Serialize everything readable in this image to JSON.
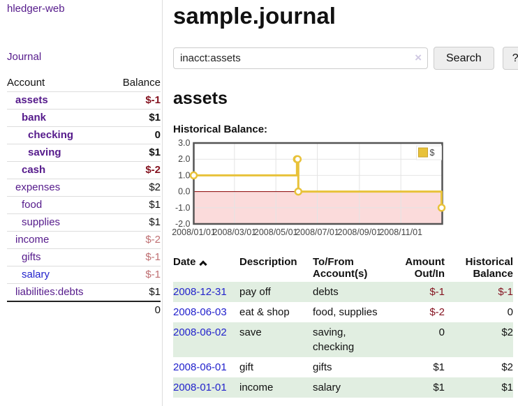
{
  "app": {
    "title": "hledger-web"
  },
  "sidebar": {
    "nav": {
      "journal_label": "Journal"
    },
    "table": {
      "account_header": "Account",
      "balance_header": "Balance",
      "accounts": [
        {
          "name": "assets",
          "balance": "$-1",
          "depth": 1
        },
        {
          "name": "bank",
          "balance": "$1",
          "depth": 2
        },
        {
          "name": "checking",
          "balance": "0",
          "depth": 3
        },
        {
          "name": "saving",
          "balance": "$1",
          "depth": 3
        },
        {
          "name": "cash",
          "balance": "$-2",
          "depth": 2
        },
        {
          "name": "expenses",
          "balance": "$2",
          "depth": 1
        },
        {
          "name": "food",
          "balance": "$1",
          "depth": 2
        },
        {
          "name": "supplies",
          "balance": "$1",
          "depth": 2
        },
        {
          "name": "income",
          "balance": "$-2",
          "depth": 1
        },
        {
          "name": "gifts",
          "balance": "$-1",
          "depth": 2
        },
        {
          "name": "salary",
          "balance": "$-1",
          "depth": 2
        },
        {
          "name": "liabilities:debts",
          "balance": "$1",
          "depth": 1
        }
      ],
      "total": "0"
    }
  },
  "main": {
    "title": "sample.journal",
    "search": {
      "value": "inacct:assets",
      "clear_icon": "×",
      "button_label": "Search",
      "help_label": "?"
    },
    "account_heading": "assets",
    "chart_heading": "Historical Balance:"
  },
  "chart_data": {
    "type": "line",
    "title": "Historical Balance:",
    "step": true,
    "series": [
      {
        "name": "$",
        "points": [
          [
            "2008-01-01",
            1
          ],
          [
            "2008-06-01",
            2
          ],
          [
            "2008-06-02",
            2
          ],
          [
            "2008-06-03",
            0
          ],
          [
            "2008-12-31",
            -1
          ]
        ]
      }
    ],
    "x_range": [
      "2008-01-01",
      "2009-01-01"
    ],
    "x_ticks": [
      "2008/01/01",
      "2008/03/01",
      "2008/05/01",
      "2008/07/01",
      "2008/09/01",
      "2008/11/01"
    ],
    "y_ticks": [
      "3.0",
      "2.0",
      "1.0",
      "0.0",
      "-1.0",
      "-2.0"
    ],
    "ylim": [
      -2,
      3
    ],
    "grid": true,
    "legend_position": "top-right",
    "legend_label": "$",
    "negative_region_shaded": true
  },
  "register": {
    "headers": [
      "Date",
      "Description",
      "To/From Account(s)",
      "Amount Out/In",
      "Historical Balance"
    ],
    "rows": [
      {
        "date": "2008-12-31",
        "description": "pay off",
        "accounts": "debts",
        "amount": "$-1",
        "balance": "$-1"
      },
      {
        "date": "2008-06-03",
        "description": "eat & shop",
        "accounts": "food, supplies",
        "amount": "$-2",
        "balance": "0"
      },
      {
        "date": "2008-06-02",
        "description": "save",
        "accounts": "saving, checking",
        "amount": "0",
        "balance": "$2"
      },
      {
        "date": "2008-06-01",
        "description": "gift",
        "accounts": "gifts",
        "amount": "$1",
        "balance": "$2"
      },
      {
        "date": "2008-01-01",
        "description": "income",
        "accounts": "salary",
        "amount": "$1",
        "balance": "$1"
      }
    ]
  },
  "colors": {
    "link_purple": "#551a8b",
    "link_blue": "#2222cc",
    "negative_strong": "#84121f",
    "negative_soft": "#bf6f72",
    "row_green": "#e1eee1",
    "series_gold": "#e8c23a",
    "series_gold_border": "#c9a22a",
    "zero_line": "#8b0000",
    "negative_region": "#fbdbdb",
    "plot_border": "#545454",
    "gridline": "#e4e4e4",
    "button_bg": "#eeeeee"
  }
}
